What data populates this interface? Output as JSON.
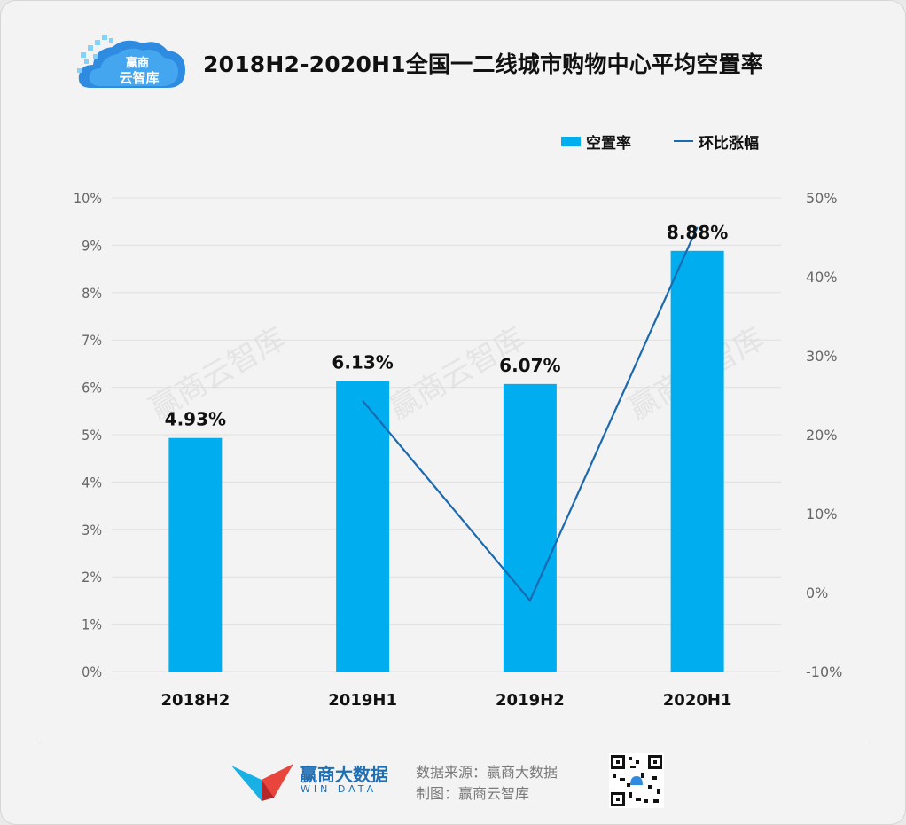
{
  "title": "2018H2-2020H1全国一二线城市购物中心平均空置率",
  "logo": {
    "text_line1": "赢商",
    "text_line2": "云智库"
  },
  "legend": {
    "bar_label": "空置率",
    "line_label": "环比涨幅"
  },
  "watermark": "赢商云智库",
  "colors": {
    "bar": "#00aeef",
    "line": "#1b69b0",
    "grid": "#e0e0e0",
    "text": "#111111",
    "axis_text": "#666666"
  },
  "chart_data": {
    "type": "bar",
    "categories": [
      "2018H2",
      "2019H1",
      "2019H2",
      "2020H1"
    ],
    "series": [
      {
        "name": "空置率",
        "type": "bar",
        "axis": "left",
        "values": [
          4.93,
          6.13,
          6.07,
          8.88
        ],
        "labels": [
          "4.93%",
          "6.13%",
          "6.07%",
          "8.88%"
        ]
      },
      {
        "name": "环比涨幅",
        "type": "line",
        "axis": "right",
        "values": [
          null,
          24.3,
          -1.0,
          46.3
        ]
      }
    ],
    "y_left": {
      "min": 0,
      "max": 10,
      "step": 1,
      "tick_labels": [
        "0%",
        "1%",
        "2%",
        "3%",
        "4%",
        "5%",
        "6%",
        "7%",
        "8%",
        "9%",
        "10%"
      ]
    },
    "y_right": {
      "min": -10,
      "max": 50,
      "step": 10,
      "tick_labels": [
        "-10%",
        "0%",
        "10%",
        "20%",
        "30%",
        "40%",
        "50%"
      ]
    },
    "grid": true,
    "legend_position": "top-right"
  },
  "footer": {
    "brand_name": "赢商大数据",
    "brand_sub": "WIN DATA",
    "source": "数据来源：赢商大数据",
    "made_by": "制图：赢商云智库"
  }
}
